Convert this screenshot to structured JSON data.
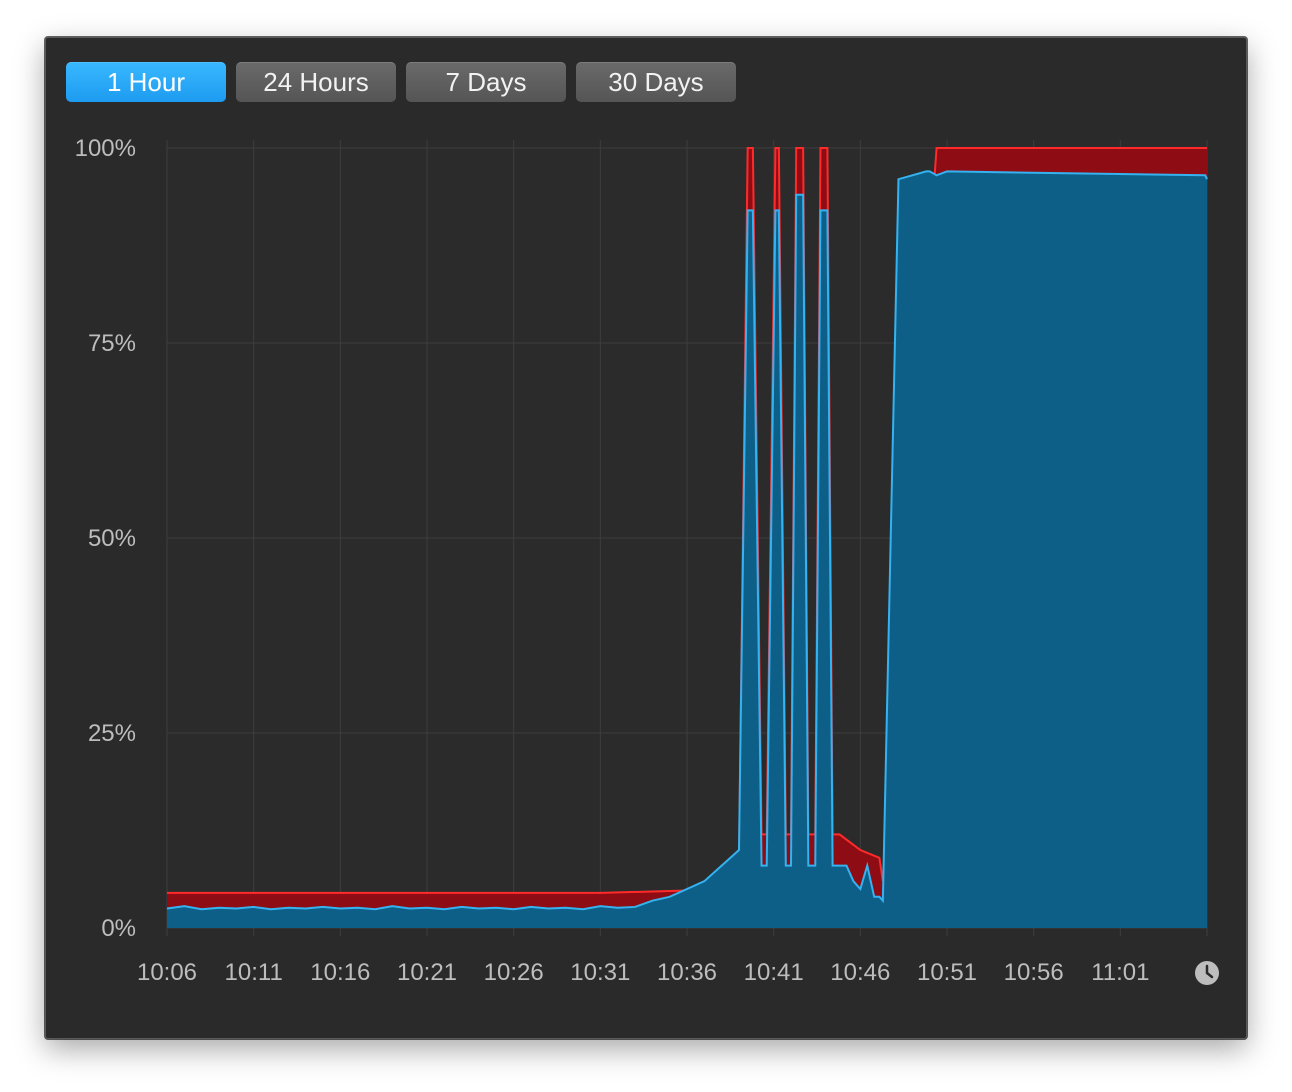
{
  "tabs": [
    {
      "label": "1 Hour",
      "active": true
    },
    {
      "label": "24 Hours",
      "active": false
    },
    {
      "label": "7 Days",
      "active": false
    },
    {
      "label": "30 Days",
      "active": false
    }
  ],
  "clock_icon": "clock-icon",
  "colors": {
    "background": "#2a2a2a",
    "blue_fill": "#0e5f87",
    "blue_line": "#35b2f0",
    "red_fill": "#8e0d14",
    "red_line": "#ff2a2a",
    "grid": "#3e3e3e",
    "active_tab": "#1fa2f3"
  },
  "chart_data": {
    "type": "area",
    "title": "",
    "xlabel": "",
    "ylabel": "",
    "ylim": [
      0,
      100
    ],
    "y_ticks": [
      "0%",
      "25%",
      "50%",
      "75%",
      "100%"
    ],
    "x_ticks": [
      "10:06",
      "10:11",
      "10:16",
      "10:21",
      "10:26",
      "10:31",
      "10:36",
      "10:41",
      "10:46",
      "10:51",
      "10:56",
      "11:01"
    ],
    "x_range_minutes": [
      0,
      60
    ],
    "grid": true,
    "series": [
      {
        "color": "blue",
        "x": [
          0,
          1,
          2,
          3,
          4,
          5,
          6,
          7,
          8,
          9,
          10,
          11,
          12,
          13,
          14,
          15,
          16,
          17,
          18,
          19,
          20,
          21,
          22,
          23,
          24,
          25,
          26,
          27,
          28,
          29,
          30,
          31,
          32,
          33,
          33.5,
          33.8,
          34.3,
          34.6,
          35.1,
          35.3,
          35.7,
          36.0,
          36.3,
          36.7,
          37.0,
          37.4,
          37.7,
          38.1,
          38.4,
          38.8,
          39.2,
          39.6,
          40.0,
          40.4,
          40.8,
          41.1,
          41.3,
          42.2,
          43.0,
          43.8,
          44.0,
          44.4,
          45.0,
          59.9,
          60
        ],
        "values": [
          2.5,
          2.8,
          2.4,
          2.6,
          2.5,
          2.7,
          2.4,
          2.6,
          2.5,
          2.7,
          2.5,
          2.6,
          2.4,
          2.8,
          2.5,
          2.6,
          2.4,
          2.7,
          2.5,
          2.6,
          2.4,
          2.7,
          2.5,
          2.6,
          2.4,
          2.8,
          2.6,
          2.7,
          3.5,
          4,
          5,
          6,
          8,
          10,
          92,
          92,
          8,
          8,
          92,
          92,
          8,
          8,
          94,
          94,
          8,
          8,
          92,
          92,
          8,
          8,
          8,
          6,
          5,
          8,
          4,
          4,
          3.5,
          96,
          96.5,
          97,
          97,
          96.5,
          97,
          96.5,
          96
        ]
      },
      {
        "color": "red",
        "x": [
          0,
          5,
          10,
          15,
          20,
          25,
          30,
          32,
          33,
          33.5,
          33.8,
          34.3,
          34.6,
          35.1,
          35.3,
          35.7,
          36.0,
          36.3,
          36.7,
          37.0,
          37.4,
          37.7,
          38.1,
          38.4,
          38.8,
          40.0,
          41.1,
          41.3,
          44.4,
          60
        ],
        "values": [
          4.5,
          4.5,
          4.5,
          4.5,
          4.5,
          4.5,
          4.8,
          6,
          9,
          100,
          100,
          12,
          12,
          100,
          100,
          12,
          12,
          100,
          100,
          12,
          12,
          100,
          100,
          12,
          12,
          10,
          9,
          6,
          100,
          100
        ]
      }
    ]
  }
}
